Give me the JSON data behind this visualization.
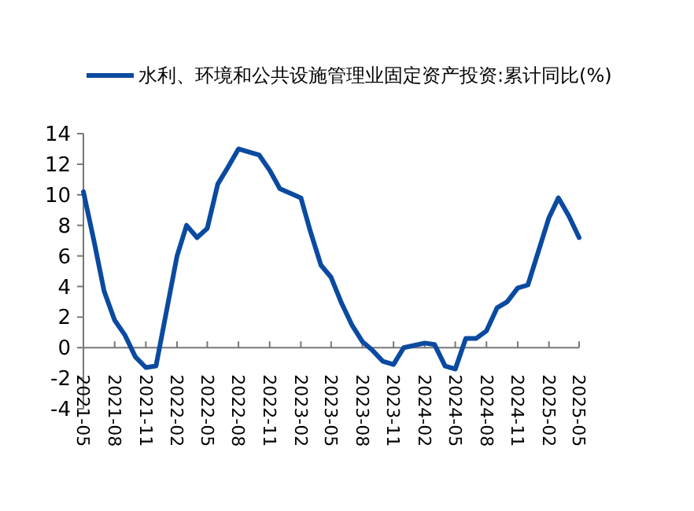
{
  "chart_data": {
    "type": "line",
    "legend": "top",
    "x": [
      "2021-05",
      "2021-06",
      "2021-07",
      "2021-08",
      "2021-09",
      "2021-10",
      "2021-11",
      "2021-12",
      "2022-02",
      "2022-03",
      "2022-04",
      "2022-05",
      "2022-06",
      "2022-07",
      "2022-08",
      "2022-09",
      "2022-10",
      "2022-11",
      "2022-12",
      "2023-02",
      "2023-03",
      "2023-04",
      "2023-05",
      "2023-06",
      "2023-07",
      "2023-08",
      "2023-09",
      "2023-10",
      "2023-11",
      "2023-12",
      "2024-02",
      "2024-03",
      "2024-04",
      "2024-05",
      "2024-06",
      "2024-07",
      "2024-08",
      "2024-09",
      "2024-10",
      "2024-11",
      "2024-12",
      "2025-02",
      "2025-03",
      "2025-04",
      "2025-05"
    ],
    "series": [
      {
        "name": "水利、环境和公共设施管理业固定资产投资:累计同比(%)",
        "color": "#0a4aa0",
        "values": [
          10.2,
          7.0,
          3.7,
          1.8,
          0.8,
          -0.6,
          -1.3,
          -1.2,
          6.0,
          8.0,
          7.2,
          7.8,
          10.7,
          11.8,
          13.0,
          12.8,
          12.6,
          11.6,
          10.4,
          9.8,
          7.6,
          5.4,
          4.6,
          2.9,
          1.5,
          0.4,
          -0.2,
          -0.9,
          -1.1,
          0.0,
          0.3,
          0.2,
          -1.2,
          -1.4,
          0.6,
          0.6,
          1.1,
          2.6,
          3.0,
          3.9,
          4.1,
          8.5,
          9.8,
          8.6,
          7.2
        ]
      }
    ],
    "xlim": [
      "2021-05",
      "2025-05"
    ],
    "xticks": [
      "2021-05",
      "2021-08",
      "2021-11",
      "2022-02",
      "2022-05",
      "2022-08",
      "2022-11",
      "2023-02",
      "2023-05",
      "2023-08",
      "2023-11",
      "2024-02",
      "2024-05",
      "2024-08",
      "2024-11",
      "2025-02",
      "2025-05"
    ],
    "ylim": [
      -4,
      14
    ],
    "yticks": [
      -4,
      -2,
      0,
      2,
      4,
      6,
      8,
      10,
      12,
      14
    ],
    "grid": false,
    "marker": "none",
    "line_style": "solid"
  }
}
